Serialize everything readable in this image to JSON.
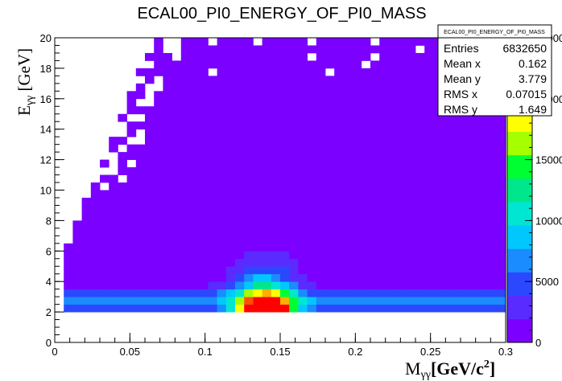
{
  "chart_data": {
    "type": "heatmap",
    "title": "ECAL00_PI0_ENERGY_OF_PI0_MASS",
    "xlabel": "M",
    "xlabel_sub": "γγ",
    "xlabel_unit": "[GeV/c",
    "xlabel_unit_sup": "2",
    "xlabel_unit_end": "]",
    "ylabel": "E",
    "ylabel_sub": "γγ",
    "ylabel_unit": " [GeV]",
    "xlim": [
      0,
      0.3
    ],
    "ylim": [
      0,
      20
    ],
    "zlim": [
      0,
      25000
    ],
    "x_ticks": [
      0,
      0.05,
      0.1,
      0.15,
      0.2,
      0.25,
      0.3
    ],
    "x_tick_labels": [
      "0",
      "0.05",
      "0.1",
      "0.15",
      "0.2",
      "0.25",
      "0.3"
    ],
    "y_ticks": [
      0,
      2,
      4,
      6,
      8,
      10,
      12,
      14,
      16,
      18,
      20
    ],
    "y_tick_labels": [
      "0",
      "2",
      "4",
      "6",
      "8",
      "10",
      "12",
      "14",
      "16",
      "18",
      "20"
    ],
    "z_ticks": [
      0,
      5000,
      10000,
      15000,
      20000,
      25000
    ],
    "z_tick_labels": [
      "0",
      "5000",
      "10000",
      "15000",
      "20000",
      "25000"
    ],
    "x_bins": 50,
    "y_bins": 40,
    "peak_mass": 0.14,
    "peak_energy": 2.8,
    "peak_count": 24000,
    "stats": {
      "name": "ECAL00_PI0_ENERGY_OF_PI0_MASS",
      "rows": [
        {
          "label": "Entries",
          "value": "6832650"
        },
        {
          "label": "Mean x",
          "value": "0.162"
        },
        {
          "label": "Mean y",
          "value": "3.779"
        },
        {
          "label": "RMS x",
          "value": "0.07015"
        },
        {
          "label": "RMS y",
          "value": "1.649"
        }
      ]
    },
    "palette": [
      "#7b00ff",
      "#5a2bff",
      "#2c48ff",
      "#1a8cff",
      "#00c8ff",
      "#00e6d2",
      "#00e68c",
      "#00ff32",
      "#a6ff00",
      "#ffff00",
      "#ffb000",
      "#ff5000",
      "#ff0000"
    ]
  }
}
